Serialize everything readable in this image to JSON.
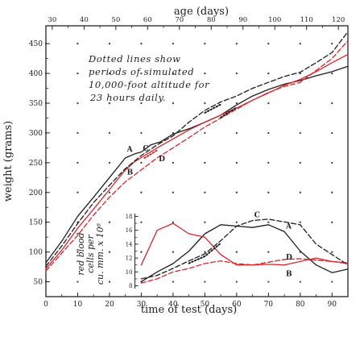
{
  "chart_data": {
    "type": "line",
    "title": "",
    "annotation": {
      "lines": [
        "Dotted lines show",
        "periods of simulated",
        "10,000-foot altitude for",
        "23 hours daily."
      ]
    },
    "x_axis": {
      "label": "time of test (days)",
      "range": [
        0,
        95
      ],
      "ticks": [
        "0",
        "10",
        "20",
        "30",
        "40",
        "50",
        "60",
        "70",
        "80",
        "90"
      ]
    },
    "top_axis": {
      "label": "age (days)",
      "range": [
        28,
        123
      ],
      "ticks": [
        "30",
        "40",
        "50",
        "60",
        "70",
        "80",
        "90",
        "100",
        "110",
        "120"
      ]
    },
    "y_axis": {
      "label": "weight (grams)",
      "range": [
        25,
        480
      ],
      "ticks": [
        "50",
        "100",
        "150",
        "200",
        "250",
        "300",
        "350",
        "400",
        "450"
      ]
    },
    "grid": "dots",
    "colors": {
      "black": "#1e1e1e",
      "red": "#d8262b"
    },
    "series": [
      {
        "name": "A",
        "color": "black",
        "style": "solid",
        "axis": "main",
        "points": [
          [
            0,
            82
          ],
          [
            5,
            118
          ],
          [
            10,
            160
          ],
          [
            15,
            192
          ],
          [
            20,
            225
          ],
          [
            25,
            258
          ],
          [
            28,
            265
          ],
          [
            30,
            268
          ],
          [
            33,
            280
          ],
          [
            36,
            285
          ],
          [
            40,
            298
          ],
          [
            45,
            307
          ],
          [
            50,
            318
          ],
          [
            55,
            330
          ],
          [
            60,
            347
          ],
          [
            65,
            362
          ],
          [
            70,
            373
          ],
          [
            75,
            382
          ],
          [
            80,
            388
          ],
          [
            85,
            396
          ],
          [
            90,
            403
          ],
          [
            95,
            412
          ]
        ]
      },
      {
        "name": "B",
        "color": "red",
        "style": "solid",
        "axis": "main",
        "points": [
          [
            0,
            72
          ],
          [
            5,
            103
          ],
          [
            10,
            140
          ],
          [
            15,
            172
          ],
          [
            20,
            205
          ],
          [
            25,
            238
          ],
          [
            28,
            252
          ],
          [
            31,
            262
          ],
          [
            35,
            275
          ],
          [
            40,
            290
          ],
          [
            45,
            305
          ],
          [
            50,
            318
          ],
          [
            55,
            330
          ],
          [
            60,
            342
          ],
          [
            65,
            355
          ],
          [
            70,
            367
          ],
          [
            75,
            380
          ],
          [
            80,
            390
          ],
          [
            85,
            403
          ],
          [
            90,
            418
          ],
          [
            95,
            432
          ]
        ]
      },
      {
        "name": "C",
        "color": "black",
        "style": "dashed",
        "axis": "main",
        "points": [
          [
            0,
            76
          ],
          [
            5,
            110
          ],
          [
            10,
            148
          ],
          [
            15,
            183
          ],
          [
            20,
            212
          ],
          [
            25,
            240
          ],
          [
            30,
            262
          ],
          [
            35,
            280
          ],
          [
            40,
            295
          ],
          [
            45,
            318
          ],
          [
            50,
            338
          ],
          [
            55,
            352
          ],
          [
            60,
            362
          ],
          [
            65,
            375
          ],
          [
            70,
            385
          ],
          [
            75,
            395
          ],
          [
            80,
            402
          ],
          [
            85,
            418
          ],
          [
            90,
            435
          ],
          [
            95,
            470
          ]
        ]
      },
      {
        "name": "D",
        "color": "red",
        "style": "dashed",
        "axis": "main",
        "points": [
          [
            0,
            68
          ],
          [
            5,
            98
          ],
          [
            10,
            128
          ],
          [
            15,
            162
          ],
          [
            20,
            192
          ],
          [
            25,
            218
          ],
          [
            30,
            238
          ],
          [
            35,
            258
          ],
          [
            40,
            275
          ],
          [
            45,
            292
          ],
          [
            50,
            310
          ],
          [
            55,
            325
          ],
          [
            60,
            340
          ],
          [
            65,
            355
          ],
          [
            70,
            368
          ],
          [
            75,
            378
          ],
          [
            80,
            385
          ],
          [
            85,
            405
          ],
          [
            90,
            425
          ],
          [
            95,
            455
          ]
        ]
      },
      {
        "name": "A",
        "color": "black",
        "style": "solid",
        "axis": "inset",
        "points": [
          [
            30,
            8.6
          ],
          [
            35,
            10
          ],
          [
            40,
            11.2
          ],
          [
            45,
            13
          ],
          [
            50,
            15.5
          ],
          [
            55,
            16.8
          ],
          [
            60,
            16.6
          ],
          [
            65,
            16.4
          ],
          [
            70,
            16.8
          ],
          [
            75,
            15.8
          ],
          [
            80,
            13
          ],
          [
            85,
            11
          ],
          [
            90,
            9.9
          ],
          [
            95,
            10.4
          ]
        ]
      },
      {
        "name": "B",
        "color": "red",
        "style": "solid",
        "axis": "inset",
        "points": [
          [
            30,
            11
          ],
          [
            35,
            16
          ],
          [
            40,
            17
          ],
          [
            45,
            15.5
          ],
          [
            50,
            15
          ],
          [
            55,
            12.5
          ],
          [
            60,
            11
          ],
          [
            65,
            11
          ],
          [
            70,
            11.1
          ],
          [
            75,
            11
          ],
          [
            80,
            11.5
          ],
          [
            85,
            12
          ],
          [
            90,
            11.5
          ],
          [
            95,
            11.3
          ]
        ]
      },
      {
        "name": "C",
        "color": "black",
        "style": "dashed",
        "axis": "inset",
        "points": [
          [
            30,
            9
          ],
          [
            35,
            9.5
          ],
          [
            40,
            10.5
          ],
          [
            45,
            11.6
          ],
          [
            50,
            12.6
          ],
          [
            55,
            14.5
          ],
          [
            60,
            16.6
          ],
          [
            65,
            17.4
          ],
          [
            70,
            17.6
          ],
          [
            75,
            17.2
          ],
          [
            80,
            16.8
          ],
          [
            85,
            14
          ],
          [
            90,
            12.5
          ],
          [
            95,
            11
          ]
        ]
      },
      {
        "name": "D",
        "color": "red",
        "style": "dashed",
        "axis": "inset",
        "points": [
          [
            30,
            8.4
          ],
          [
            35,
            9
          ],
          [
            40,
            10
          ],
          [
            45,
            10.5
          ],
          [
            50,
            11.2
          ],
          [
            55,
            11.6
          ],
          [
            60,
            11.2
          ],
          [
            65,
            11
          ],
          [
            70,
            11.4
          ],
          [
            75,
            11.8
          ],
          [
            80,
            11.9
          ],
          [
            85,
            11.7
          ],
          [
            90,
            11.5
          ],
          [
            95,
            11.2
          ]
        ]
      }
    ],
    "inset": {
      "ylabel_lines": [
        "red blood",
        "cells per",
        "cu. mm. x 10⁶"
      ],
      "y_range": [
        7.6,
        18.4
      ],
      "y_ticks": [
        "8",
        "10",
        "12",
        "14",
        "16",
        "18"
      ],
      "y_minor_ticks": [
        "9",
        "11",
        "13",
        "15",
        "17"
      ],
      "x_range": [
        28,
        95
      ]
    }
  }
}
